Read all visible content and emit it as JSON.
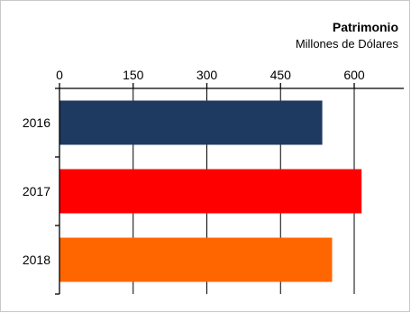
{
  "chart_data": {
    "type": "bar",
    "orientation": "horizontal",
    "title": "Patrimonio",
    "subtitle": "Millones de Dólares",
    "xlabel": "",
    "ylabel": "",
    "categories": [
      "2016",
      "2017",
      "2018"
    ],
    "values": [
      535,
      615,
      555
    ],
    "colors": [
      "#1f3a60",
      "#ff0000",
      "#ff6600"
    ],
    "xlim": [
      0,
      700
    ],
    "x_ticks": [
      0,
      150,
      300,
      450,
      600
    ],
    "x_tick_labels": [
      "0",
      "150",
      "300",
      "450",
      "600"
    ],
    "axis_position": "top",
    "grid": true
  }
}
